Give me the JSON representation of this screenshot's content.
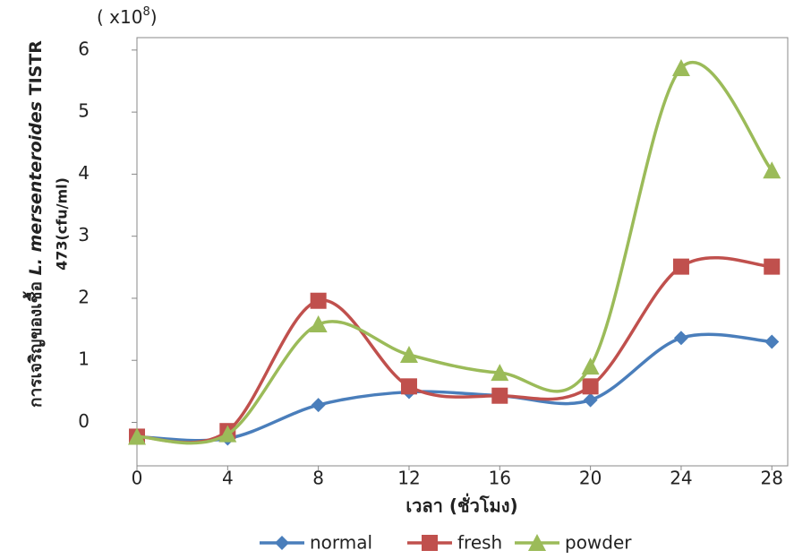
{
  "chart_data": {
    "type": "line",
    "y_multiplier": [
      "( x10",
      "8",
      ")"
    ],
    "y_label": [
      "การเจริญของเชื้อ",
      "L. mersenteroides",
      "TISTR",
      "473(cfu/ml)"
    ],
    "x_label": "เวลา (ชั่วโมง)",
    "x": [
      0,
      4,
      8,
      12,
      16,
      20,
      24,
      28
    ],
    "xlim": [
      0,
      28.7
    ],
    "xticks": [
      0,
      4,
      8,
      12,
      16,
      20,
      24,
      28
    ],
    "ylim": [
      -0.7,
      6.2
    ],
    "yticks": [
      0,
      1,
      2,
      3,
      4,
      5,
      6
    ],
    "smooth": true,
    "series": [
      {
        "name": "normal",
        "color": "#4a7ebb",
        "marker": "diamond",
        "values": [
          -0.23,
          -0.26,
          0.28,
          0.49,
          0.43,
          0.36,
          1.36,
          1.3
        ]
      },
      {
        "name": "fresh",
        "color": "#c0504d",
        "marker": "square",
        "values": [
          -0.23,
          -0.14,
          1.96,
          0.58,
          0.43,
          0.58,
          2.51,
          2.51
        ]
      },
      {
        "name": "powder",
        "color": "#9bbb59",
        "marker": "triangle",
        "values": [
          -0.23,
          -0.19,
          1.58,
          1.09,
          0.8,
          0.9,
          5.71,
          4.06
        ]
      }
    ]
  }
}
